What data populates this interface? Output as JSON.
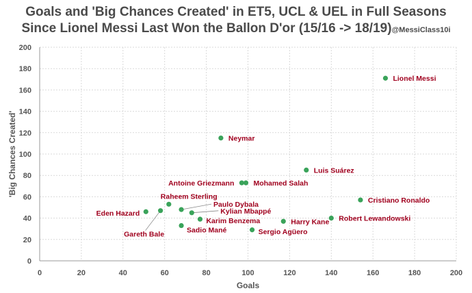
{
  "title": {
    "line1": "Goals and 'Big Chances Created' in ET5, UCL & UEL in Full Seasons",
    "line2": "Since Lionel Messi Last Won the Ballon D'or (15/16 -> 18/19)",
    "handle": "@MessiClass10i"
  },
  "chart_data": {
    "type": "scatter",
    "title": "Goals and 'Big Chances Created' in ET5, UCL & UEL in Full Seasons Since Lionel Messi Last Won the Ballon D'or (15/16 -> 18/19)",
    "xlabel": "Goals",
    "ylabel": "'Big Chances Created'",
    "xlim": [
      0,
      200
    ],
    "ylim": [
      0,
      200
    ],
    "xticks": [
      0,
      20,
      40,
      60,
      80,
      100,
      120,
      140,
      160,
      180,
      200
    ],
    "yticks": [
      0,
      20,
      40,
      60,
      80,
      100,
      120,
      140,
      160,
      180,
      200
    ],
    "grid": true,
    "point_color": "#3aa35a",
    "label_color": "#a0001e",
    "points": [
      {
        "name": "Lionel Messi",
        "x": 166,
        "y": 171
      },
      {
        "name": "Neymar",
        "x": 87,
        "y": 115
      },
      {
        "name": "Luis Suárez",
        "x": 128,
        "y": 85
      },
      {
        "name": "Antoine Griezmann",
        "x": 97,
        "y": 73
      },
      {
        "name": "Mohamed Salah",
        "x": 99,
        "y": 73
      },
      {
        "name": "Cristiano Ronaldo",
        "x": 154,
        "y": 57
      },
      {
        "name": "Raheem Sterling",
        "x": 62,
        "y": 53
      },
      {
        "name": "Paulo Dybala",
        "x": 68,
        "y": 48
      },
      {
        "name": "Kylian Mbappé",
        "x": 73,
        "y": 45
      },
      {
        "name": "Eden Hazard",
        "x": 51,
        "y": 46
      },
      {
        "name": "Gareth Bale",
        "x": 58,
        "y": 47
      },
      {
        "name": "Karim Benzema",
        "x": 77,
        "y": 39
      },
      {
        "name": "Sadio Mané",
        "x": 68,
        "y": 33
      },
      {
        "name": "Harry Kane",
        "x": 117,
        "y": 37
      },
      {
        "name": "Robert Lewandowski",
        "x": 140,
        "y": 40
      },
      {
        "name": "Sergio Agüero",
        "x": 102,
        "y": 29
      }
    ]
  }
}
